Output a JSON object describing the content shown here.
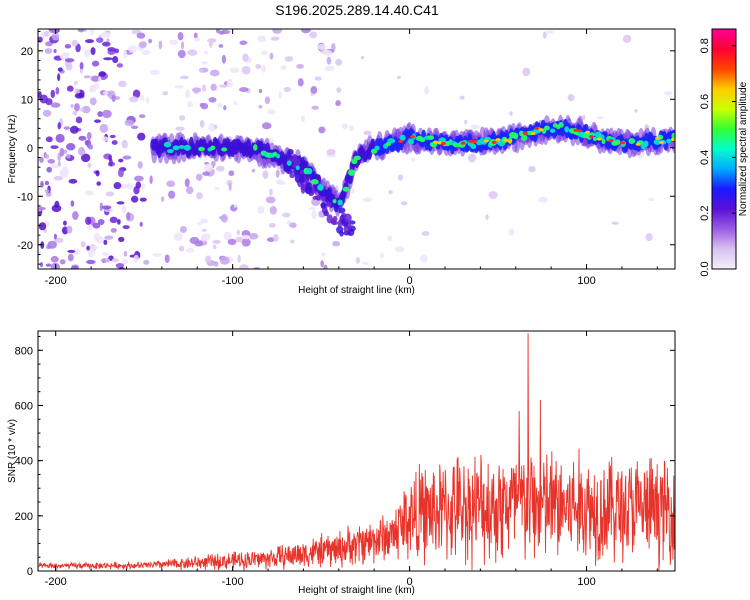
{
  "title": "S196.2025.289.14.40.C41",
  "chart_data": [
    {
      "type": "heatmap",
      "name": "spectrogram",
      "xlabel": "Height of straight line (km)",
      "ylabel": "Frequency (Hz)",
      "xlim": [
        -210,
        150
      ],
      "ylim": [
        -25,
        24.5
      ],
      "xticks": [
        -200,
        -100,
        0,
        100
      ],
      "yticks": [
        -20,
        -10,
        0,
        10,
        20
      ],
      "colorbar": {
        "label": "Normalized spectral amplitude",
        "range": [
          0.0,
          0.86
        ],
        "ticks": [
          0.0,
          0.2,
          0.4,
          0.6,
          0.8
        ],
        "colormap": [
          "#f5f0fa",
          "#d9c2f0",
          "#9b5ce6",
          "#5a10d8",
          "#1a1aff",
          "#00aaff",
          "#00ffcc",
          "#33ff33",
          "#ccff00",
          "#ffcc00",
          "#ff4400",
          "#ff0033",
          "#ff0099"
        ]
      },
      "ridge": {
        "description_points_km_hz": [
          [
            -145,
            0
          ],
          [
            -120,
            0
          ],
          [
            -100,
            0
          ],
          [
            -80,
            -1
          ],
          [
            -60,
            -4
          ],
          [
            -50,
            -8
          ],
          [
            -40,
            -12
          ],
          [
            -30,
            -2
          ],
          [
            -20,
            0
          ],
          [
            0,
            2
          ],
          [
            20,
            1
          ],
          [
            40,
            1
          ],
          [
            60,
            2
          ],
          [
            75,
            4
          ],
          [
            90,
            4
          ],
          [
            100,
            3
          ],
          [
            115,
            1
          ],
          [
            130,
            1
          ],
          [
            150,
            2
          ]
        ]
      }
    },
    {
      "type": "line",
      "name": "snr",
      "xlabel": "Height of straight line (km)",
      "ylabel": "SNR (10 * v/v)",
      "xlim": [
        -210,
        150
      ],
      "ylim": [
        0,
        870
      ],
      "xticks": [
        -200,
        -100,
        0,
        100
      ],
      "yticks": [
        0,
        200,
        400,
        600,
        800
      ],
      "color": "#e8332a",
      "series_envelope": [
        {
          "x": -210,
          "mean": 18,
          "spread": 12
        },
        {
          "x": -150,
          "mean": 20,
          "spread": 15
        },
        {
          "x": -120,
          "mean": 30,
          "spread": 30
        },
        {
          "x": -80,
          "mean": 45,
          "spread": 45
        },
        {
          "x": -40,
          "mean": 80,
          "spread": 80
        },
        {
          "x": -10,
          "mean": 130,
          "spread": 110
        },
        {
          "x": 0,
          "mean": 200,
          "spread": 200
        },
        {
          "x": 30,
          "mean": 230,
          "spread": 230
        },
        {
          "x": 60,
          "mean": 240,
          "spread": 260
        },
        {
          "x": 100,
          "mean": 230,
          "spread": 240
        },
        {
          "x": 150,
          "mean": 220,
          "spread": 220
        }
      ],
      "peaks": [
        {
          "x": 67,
          "y": 862
        },
        {
          "x": 62,
          "y": 580
        },
        {
          "x": 74,
          "y": 620
        }
      ]
    }
  ]
}
